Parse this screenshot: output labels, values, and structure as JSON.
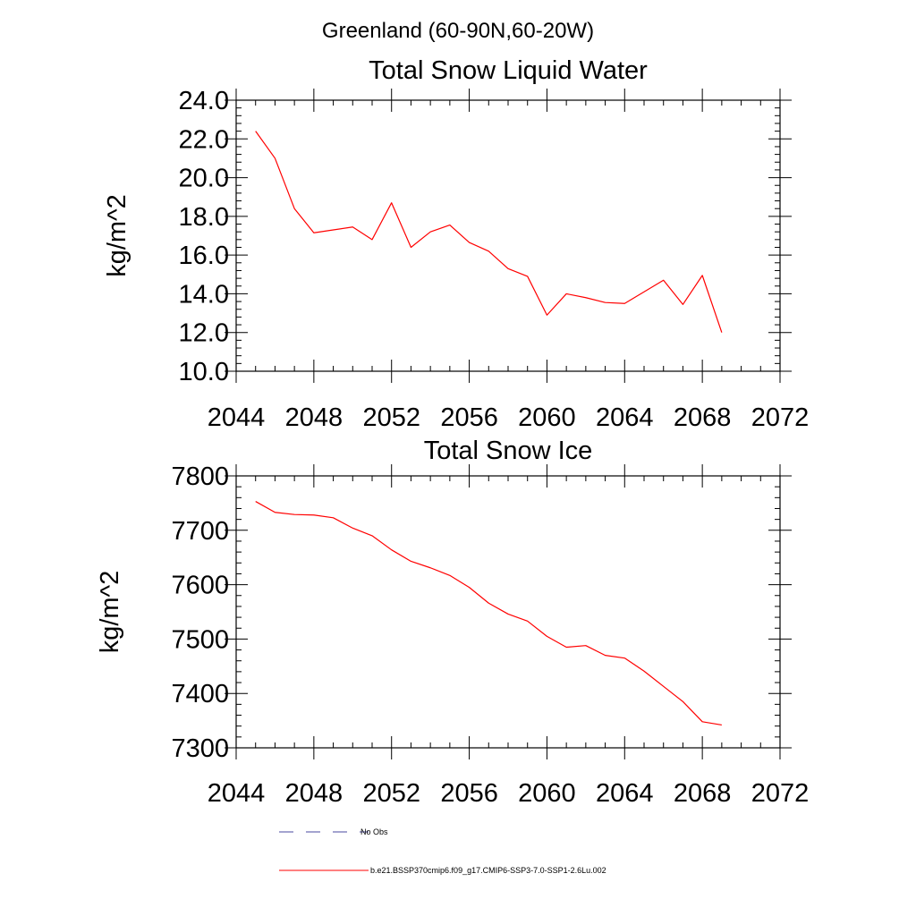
{
  "figure_title": "Greenland (60-90N,60-20W)",
  "chart_data": [
    {
      "type": "line",
      "title": "Total Snow Liquid Water",
      "ylabel": "kg/m^2",
      "xlabel": "",
      "xlim": [
        2044,
        2072
      ],
      "ylim": [
        10,
        24
      ],
      "xticks": [
        "2044",
        "2048",
        "2052",
        "2056",
        "2060",
        "2064",
        "2068",
        "2072"
      ],
      "yticks": [
        "10.0",
        "12.0",
        "14.0",
        "16.0",
        "18.0",
        "20.0",
        "22.0",
        "24.0"
      ],
      "grid": false,
      "series": [
        {
          "color": "#ff0000",
          "x": [
            2045,
            2046,
            2047,
            2048,
            2049,
            2050,
            2051,
            2052,
            2053,
            2054,
            2055,
            2056,
            2057,
            2058,
            2059,
            2060,
            2061,
            2062,
            2063,
            2064,
            2065,
            2066,
            2067,
            2068,
            2069
          ],
          "y": [
            22.4,
            21.0,
            18.4,
            17.15,
            17.3,
            17.45,
            16.8,
            18.7,
            16.4,
            17.2,
            17.55,
            16.65,
            16.2,
            15.3,
            14.9,
            12.9,
            14.0,
            13.8,
            13.55,
            13.5,
            14.1,
            14.7,
            13.45,
            14.95,
            12.0
          ]
        }
      ]
    },
    {
      "type": "line",
      "title": "Total Snow Ice",
      "ylabel": "kg/m^2",
      "xlabel": "",
      "xlim": [
        2044,
        2072
      ],
      "ylim": [
        7300,
        7800
      ],
      "xticks": [
        "2044",
        "2048",
        "2052",
        "2056",
        "2060",
        "2064",
        "2068",
        "2072"
      ],
      "yticks": [
        "7300",
        "7400",
        "7500",
        "7600",
        "7700",
        "7800"
      ],
      "grid": false,
      "series": [
        {
          "color": "#ff0000",
          "x": [
            2045,
            2046,
            2047,
            2048,
            2049,
            2050,
            2051,
            2052,
            2053,
            2054,
            2055,
            2056,
            2057,
            2058,
            2059,
            2060,
            2061,
            2062,
            2063,
            2064,
            2065,
            2066,
            2067,
            2068,
            2069
          ],
          "y": [
            7753,
            7733,
            7729,
            7728,
            7723,
            7704,
            7690,
            7664,
            7643,
            7631,
            7617,
            7595,
            7566,
            7546,
            7533,
            7505,
            7485,
            7488,
            7470,
            7465,
            7441,
            7413,
            7385,
            7348,
            7342
          ]
        }
      ]
    }
  ],
  "legend": [
    {
      "label": "No Obs",
      "style": "dashed",
      "color": "#4a4aa0"
    },
    {
      "label": "b.e21.BSSP370cmip6.f09_g17.CMIP6-SSP3-7.0-SSP1-2.6Lu.002",
      "style": "solid",
      "color": "#ff0000"
    }
  ]
}
